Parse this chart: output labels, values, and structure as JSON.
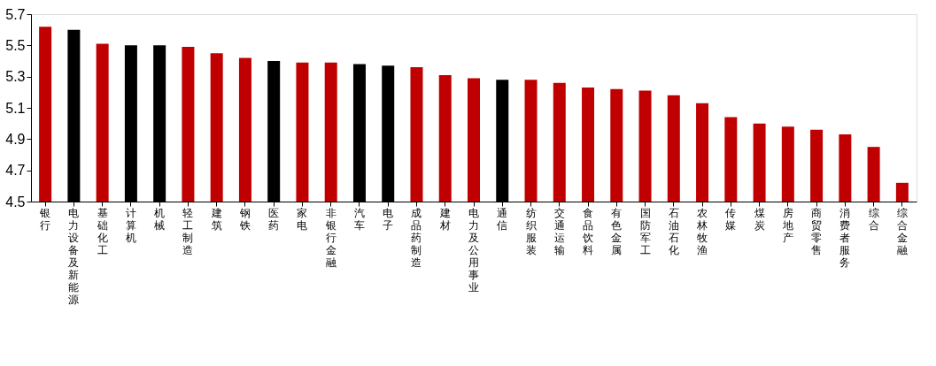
{
  "chart_data": {
    "type": "bar",
    "categories": [
      "银行",
      "电力设备及新能源",
      "基础化工",
      "计算机",
      "机械",
      "轻工制造",
      "建筑",
      "钢铁",
      "医药",
      "家电",
      "非银行金融",
      "汽车",
      "电子",
      "成品药制造",
      "建材",
      "电力及公用事业",
      "通信",
      "纺织服装",
      "交通运输",
      "食品饮料",
      "有色金属",
      "国防军工",
      "石油石化",
      "农林牧渔",
      "传媒",
      "煤炭",
      "房地产",
      "商贸零售",
      "消费者服务",
      "综合",
      "综合金融"
    ],
    "values": [
      5.62,
      5.6,
      5.51,
      5.5,
      5.5,
      5.49,
      5.45,
      5.42,
      5.4,
      5.39,
      5.39,
      5.38,
      5.37,
      5.36,
      5.31,
      5.29,
      5.28,
      5.28,
      5.26,
      5.23,
      5.22,
      5.21,
      5.18,
      5.13,
      5.04,
      5.0,
      4.98,
      4.96,
      4.93,
      4.85,
      4.62
    ],
    "colors": [
      "#c00000",
      "#000000",
      "#c00000",
      "#000000",
      "#000000",
      "#c00000",
      "#c00000",
      "#c00000",
      "#000000",
      "#c00000",
      "#c00000",
      "#000000",
      "#000000",
      "#c00000",
      "#c00000",
      "#c00000",
      "#000000",
      "#c00000",
      "#c00000",
      "#c00000",
      "#c00000",
      "#c00000",
      "#c00000",
      "#c00000",
      "#c00000",
      "#c00000",
      "#c00000",
      "#c00000",
      "#c00000",
      "#c00000",
      "#c00000"
    ],
    "ylim": [
      4.5,
      5.7
    ],
    "yticks": [
      4.5,
      4.7,
      4.9,
      5.1,
      5.3,
      5.5,
      5.7
    ],
    "grid": false
  }
}
